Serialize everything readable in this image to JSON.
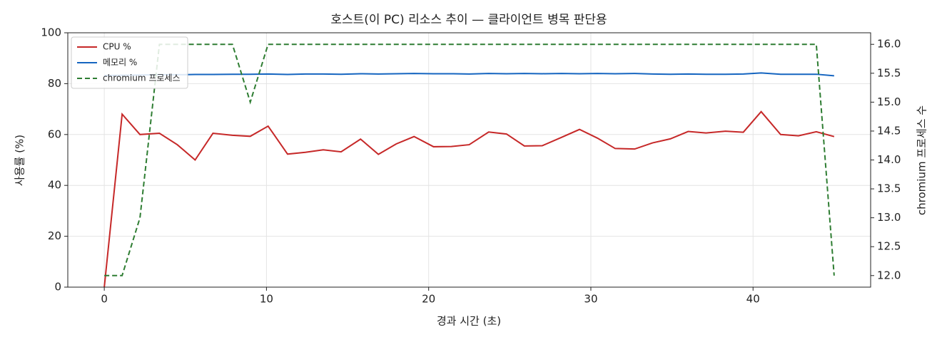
{
  "chart_data": {
    "type": "line",
    "title": "호스트(이 PC) 리소스 추이 — 클라이언트 병목 판단용",
    "x_label": "경과 시간 (초)",
    "y_label": "사용률 (%)",
    "y2_label": "chromium 프로세스 수",
    "x": [
      0,
      1.1,
      2.2,
      3.4,
      4.5,
      5.6,
      6.7,
      7.9,
      9.0,
      10.1,
      11.3,
      12.4,
      13.5,
      14.6,
      15.8,
      16.9,
      18.0,
      19.1,
      20.3,
      21.4,
      22.5,
      23.7,
      24.8,
      25.9,
      27.0,
      28.2,
      29.3,
      30.4,
      31.5,
      32.7,
      33.8,
      34.9,
      36.0,
      37.1,
      38.3,
      39.4,
      40.5,
      41.7,
      42.8,
      43.9,
      45.0
    ],
    "series": [
      {
        "name": "CPU %",
        "color": "#c62828",
        "linestyle": "solid",
        "axis": "y",
        "values": [
          0,
          68,
          60,
          60.5,
          56,
          50,
          60.5,
          59.7,
          59.3,
          63.3,
          52.3,
          53,
          54,
          53.2,
          58.2,
          52.2,
          56.3,
          59.2,
          55.2,
          55.3,
          56,
          61,
          60.2,
          55.5,
          55.6,
          58.9,
          62,
          58.6,
          54.5,
          54.3,
          56.7,
          58.3,
          61.2,
          60.6,
          61.3,
          60.9,
          69,
          60,
          59.5,
          61.1,
          59.2
        ]
      },
      {
        "name": "메모리 %",
        "color": "#1565c0",
        "linestyle": "solid",
        "axis": "y",
        "values": [
          83.2,
          83.3,
          83.4,
          83.5,
          83.5,
          83.6,
          83.6,
          83.7,
          83.7,
          83.8,
          83.6,
          83.8,
          83.8,
          83.7,
          83.9,
          83.8,
          83.9,
          84.0,
          83.9,
          83.9,
          83.8,
          84.0,
          83.9,
          84.0,
          83.9,
          84.0,
          83.9,
          84.0,
          83.9,
          84.0,
          83.8,
          83.7,
          83.8,
          83.7,
          83.7,
          83.8,
          84.2,
          83.7,
          83.7,
          83.7,
          83.1
        ]
      },
      {
        "name": "chromium 프로세스",
        "color": "#2e7d32",
        "linestyle": "dashed",
        "axis": "y2",
        "values": [
          12,
          12,
          13,
          16,
          16,
          16,
          16,
          16,
          15,
          16,
          16,
          16,
          16,
          16,
          16,
          16,
          16,
          16,
          16,
          16,
          16,
          16,
          16,
          16,
          16,
          16,
          16,
          16,
          16,
          16,
          16,
          16,
          16,
          16,
          16,
          16,
          16,
          16,
          16,
          16,
          12
        ]
      }
    ],
    "xlim": [
      -2.25,
      47.25
    ],
    "xticks": [
      0,
      10,
      20,
      30,
      40
    ],
    "ylim": [
      0,
      100
    ],
    "yticks": [
      0,
      20,
      40,
      60,
      80,
      100
    ],
    "y2lim": [
      11.8,
      16.2
    ],
    "y2ticks": [
      {
        "value": 12,
        "label": "12.0"
      },
      {
        "value": 12.5,
        "label": "12.5"
      },
      {
        "value": 13,
        "label": "13.0"
      },
      {
        "value": 13.5,
        "label": "13.5"
      },
      {
        "value": 14,
        "label": "14.0"
      },
      {
        "value": 14.5,
        "label": "14.5"
      },
      {
        "value": 15,
        "label": "15.0"
      },
      {
        "value": 15.5,
        "label": "15.5"
      },
      {
        "value": 16,
        "label": "16.0"
      }
    ],
    "grid": true,
    "legend": "upper left"
  }
}
